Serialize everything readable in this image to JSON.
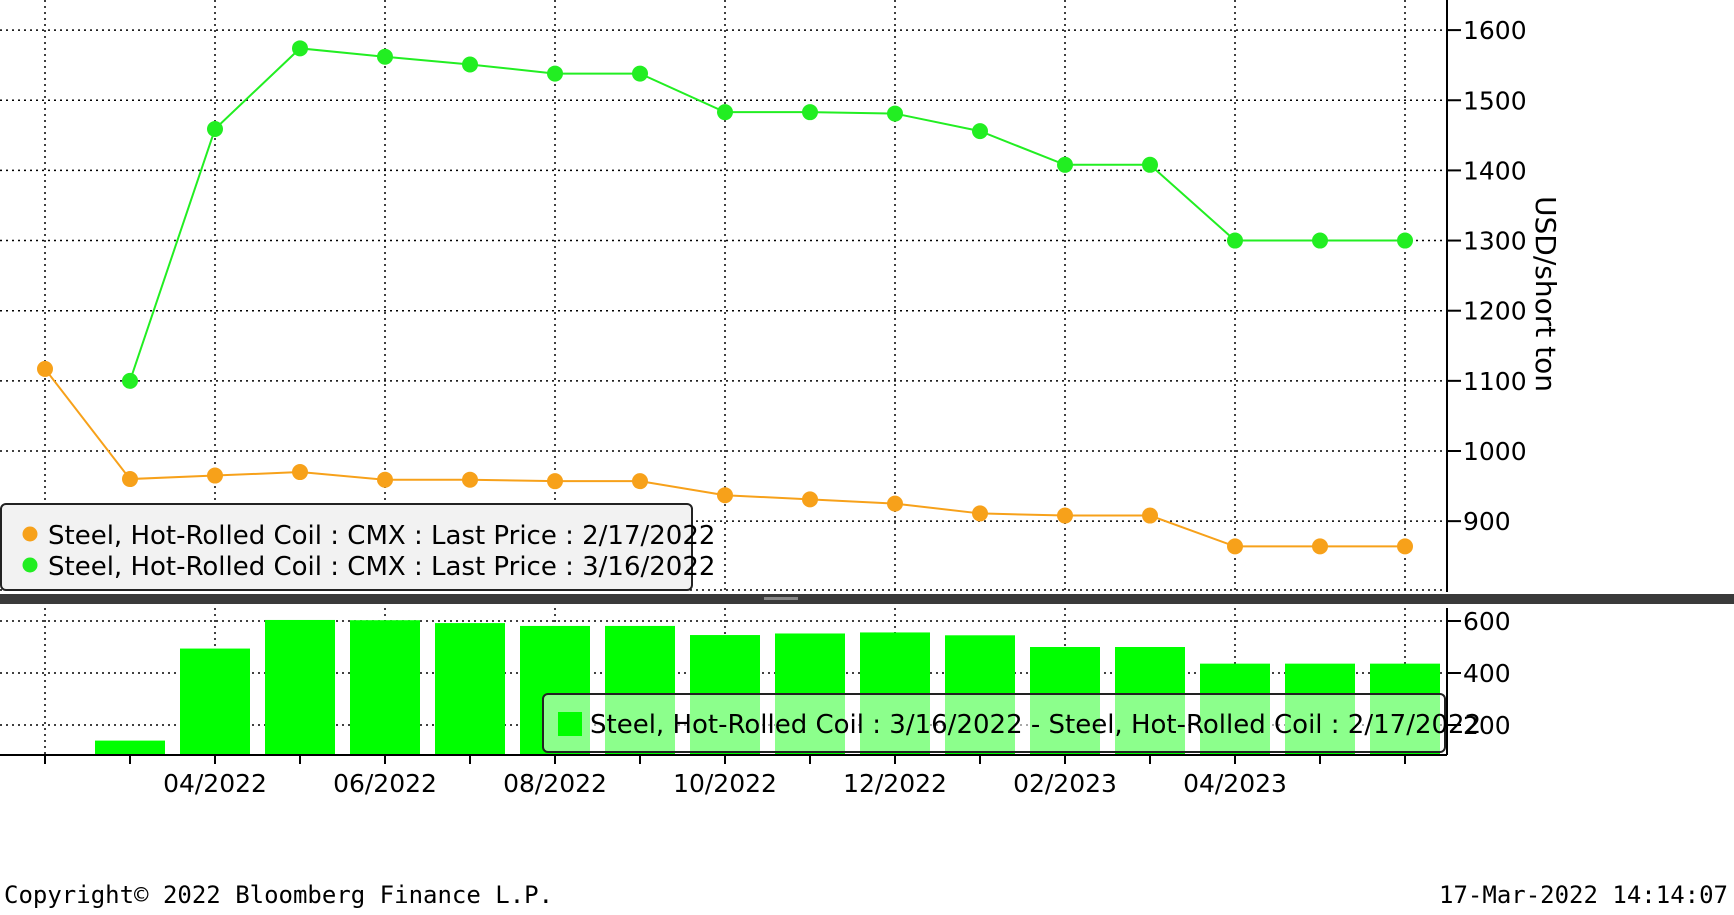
{
  "chart_data": [
    {
      "type": "line",
      "title": "",
      "ylabel": "USD/short ton",
      "ylim": [
        800,
        1640
      ],
      "yticks": [
        900,
        1000,
        1100,
        1200,
        1300,
        1400,
        1500,
        1600
      ],
      "xticks": [
        "04/2022",
        "06/2022",
        "08/2022",
        "10/2022",
        "12/2022",
        "02/2023",
        "04/2023"
      ],
      "grid": true,
      "legend_position": "bottom-left",
      "series": [
        {
          "name": "Steel, Hot-Rolled Coil : CMX : Last Price : 2/17/2022",
          "color": "#F7A11A",
          "points": [
            {
              "x": "2022-02",
              "y": 1117
            },
            {
              "x": "2022-03",
              "y": 960
            },
            {
              "x": "2022-04",
              "y": 965
            },
            {
              "x": "2022-05",
              "y": 970
            },
            {
              "x": "2022-06",
              "y": 959
            },
            {
              "x": "2022-07",
              "y": 959
            },
            {
              "x": "2022-08",
              "y": 957
            },
            {
              "x": "2022-09",
              "y": 957
            },
            {
              "x": "2022-10",
              "y": 937
            },
            {
              "x": "2022-11",
              "y": 931
            },
            {
              "x": "2022-12",
              "y": 925
            },
            {
              "x": "2023-01",
              "y": 911
            },
            {
              "x": "2023-02",
              "y": 908
            },
            {
              "x": "2023-03",
              "y": 908
            },
            {
              "x": "2023-04",
              "y": 864
            },
            {
              "x": "2023-05",
              "y": 864
            },
            {
              "x": "2023-06",
              "y": 864
            }
          ]
        },
        {
          "name": "Steel, Hot-Rolled Coil : CMX : Last Price : 3/16/2022",
          "color": "#22EE22",
          "points": [
            {
              "x": "2022-03",
              "y": 1100
            },
            {
              "x": "2022-04",
              "y": 1459
            },
            {
              "x": "2022-05",
              "y": 1574
            },
            {
              "x": "2022-06",
              "y": 1562
            },
            {
              "x": "2022-07",
              "y": 1551
            },
            {
              "x": "2022-08",
              "y": 1538
            },
            {
              "x": "2022-09",
              "y": 1538
            },
            {
              "x": "2022-10",
              "y": 1483
            },
            {
              "x": "2022-11",
              "y": 1483
            },
            {
              "x": "2022-12",
              "y": 1481
            },
            {
              "x": "2023-01",
              "y": 1456
            },
            {
              "x": "2023-02",
              "y": 1408
            },
            {
              "x": "2023-03",
              "y": 1408
            },
            {
              "x": "2023-04",
              "y": 1300
            },
            {
              "x": "2023-05",
              "y": 1300
            },
            {
              "x": "2023-06",
              "y": 1300
            }
          ]
        }
      ]
    },
    {
      "type": "bar",
      "title": "",
      "ylim": [
        100,
        630
      ],
      "yticks": [
        200,
        400,
        600
      ],
      "grid": true,
      "legend_position": "bottom-right",
      "series": [
        {
          "name": "Steel, Hot-Rolled Coil : 3/16/2022 - Steel, Hot-Rolled Coil : 2/17/2022",
          "color": "#00FF00",
          "points": [
            {
              "x": "2022-03",
              "y": 140
            },
            {
              "x": "2022-04",
              "y": 494
            },
            {
              "x": "2022-05",
              "y": 604
            },
            {
              "x": "2022-06",
              "y": 603
            },
            {
              "x": "2022-07",
              "y": 592
            },
            {
              "x": "2022-08",
              "y": 581
            },
            {
              "x": "2022-09",
              "y": 581
            },
            {
              "x": "2022-10",
              "y": 546
            },
            {
              "x": "2022-11",
              "y": 552
            },
            {
              "x": "2022-12",
              "y": 556
            },
            {
              "x": "2023-01",
              "y": 545
            },
            {
              "x": "2023-02",
              "y": 500
            },
            {
              "x": "2023-03",
              "y": 500
            },
            {
              "x": "2023-04",
              "y": 436
            },
            {
              "x": "2023-05",
              "y": 436
            },
            {
              "x": "2023-06",
              "y": 436
            }
          ]
        }
      ]
    }
  ],
  "footer": {
    "copyright": "Copyright© 2022 Bloomberg Finance L.P.",
    "timestamp": "17-Mar-2022 14:14:07"
  }
}
